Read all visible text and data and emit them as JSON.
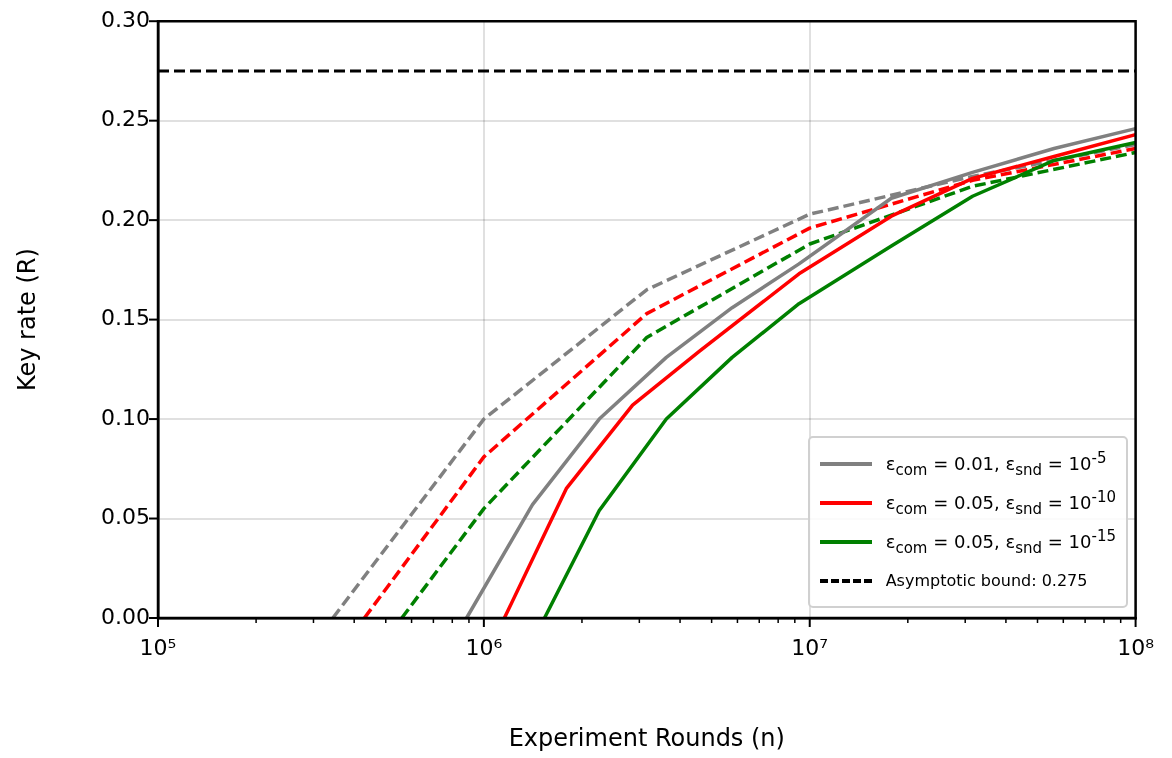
{
  "chart_data": {
    "type": "line",
    "xlabel": "Experiment Rounds (n)",
    "ylabel": "Key rate (R)",
    "log": "x",
    "grid": true,
    "legend": "bottom right",
    "xlim": [
      100000,
      100000000
    ],
    "ylim": [
      0,
      0.3
    ],
    "xticks": [
      {
        "value": 100000,
        "label": "10⁵"
      },
      {
        "value": 200000,
        "label": null
      },
      {
        "value": 300000,
        "label": null
      },
      {
        "value": 400000,
        "label": null
      },
      {
        "value": 500000,
        "label": null
      },
      {
        "value": 600000,
        "label": null
      },
      {
        "value": 700000,
        "label": null
      },
      {
        "value": 800000,
        "label": null
      },
      {
        "value": 900000,
        "label": null
      },
      {
        "value": 1000000,
        "label": "10⁶"
      },
      {
        "value": 2000000,
        "label": null
      },
      {
        "value": 3000000,
        "label": null
      },
      {
        "value": 4000000,
        "label": null
      },
      {
        "value": 5000000,
        "label": null
      },
      {
        "value": 6000000,
        "label": null
      },
      {
        "value": 7000000,
        "label": null
      },
      {
        "value": 8000000,
        "label": null
      },
      {
        "value": 9000000,
        "label": null
      },
      {
        "value": 10000000,
        "label": "10⁷"
      },
      {
        "value": 20000000,
        "label": null
      },
      {
        "value": 30000000,
        "label": null
      },
      {
        "value": 40000000,
        "label": null
      },
      {
        "value": 50000000,
        "label": null
      },
      {
        "value": 60000000,
        "label": null
      },
      {
        "value": 70000000,
        "label": null
      },
      {
        "value": 80000000,
        "label": null
      },
      {
        "value": 90000000,
        "label": null
      },
      {
        "value": 100000000,
        "label": "10⁸"
      }
    ],
    "yticks": [
      {
        "value": 0,
        "label": "0.00"
      },
      {
        "value": 0.05,
        "label": "0.05"
      },
      {
        "value": 0.1,
        "label": "0.10"
      },
      {
        "value": 0.15,
        "label": "0.15"
      },
      {
        "value": 0.2,
        "label": "0.20"
      },
      {
        "value": 0.25,
        "label": "0.25"
      },
      {
        "value": 0.3,
        "label": "0.30"
      }
    ],
    "ref_lines": [
      {
        "axis": "y",
        "value": 0.275,
        "label": "Asymptotic bound: 0.275",
        "color": "#000000",
        "line_style": "dashed"
      }
    ],
    "series": [
      {
        "name": "ε$_{com}$ = 0.01, ε$_{snd}$ = 10$^{-5}$",
        "color": "#808080",
        "line_style": "solid",
        "x": [
          885000,
          1410000,
          2260000,
          3630000,
          5780000,
          9270000,
          17800000,
          31600000,
          56200000,
          100000000
        ],
        "values": [
          0,
          0.057,
          0.1,
          0.131,
          0.156,
          0.178,
          0.211,
          0.224,
          0.236,
          0.246
        ]
      },
      {
        "name": "ε$_{com}$ = 0.05, ε$_{snd}$ = 10$^{-10}$",
        "color": "#ff0000",
        "line_style": "solid",
        "x": [
          1156000,
          1790000,
          2860000,
          4580000,
          9270000,
          17800000,
          31600000,
          56200000,
          100000000
        ],
        "values": [
          0,
          0.065,
          0.107,
          0.134,
          0.173,
          0.202,
          0.221,
          0.232,
          0.243
        ]
      },
      {
        "name": "ε$_{com}$ = 0.05, ε$_{snd}$ = 10$^{-15}$",
        "color": "#008000",
        "line_style": "solid",
        "x": [
          1535000,
          2260000,
          3630000,
          5780000,
          9270000,
          17800000,
          31600000,
          56200000,
          100000000
        ],
        "values": [
          0,
          0.054,
          0.1,
          0.131,
          0.158,
          0.187,
          0.212,
          0.23,
          0.239
        ]
      },
      {
        "color": "#808080",
        "line_style": "dashed",
        "x": [
          344000,
          1000000,
          3160000,
          10000000,
          31600000,
          100000000
        ],
        "values": [
          0,
          0.1,
          0.165,
          0.203,
          0.222,
          0.238
        ]
      },
      {
        "color": "#ff0000",
        "line_style": "dashed",
        "x": [
          430000,
          1000000,
          3160000,
          10000000,
          31600000,
          100000000
        ],
        "values": [
          0,
          0.081,
          0.153,
          0.196,
          0.22,
          0.236
        ]
      },
      {
        "color": "#008000",
        "line_style": "dashed",
        "x": [
          560000,
          1000000,
          3160000,
          10000000,
          31600000,
          100000000
        ],
        "values": [
          0,
          0.055,
          0.141,
          0.188,
          0.217,
          0.234
        ]
      }
    ]
  }
}
